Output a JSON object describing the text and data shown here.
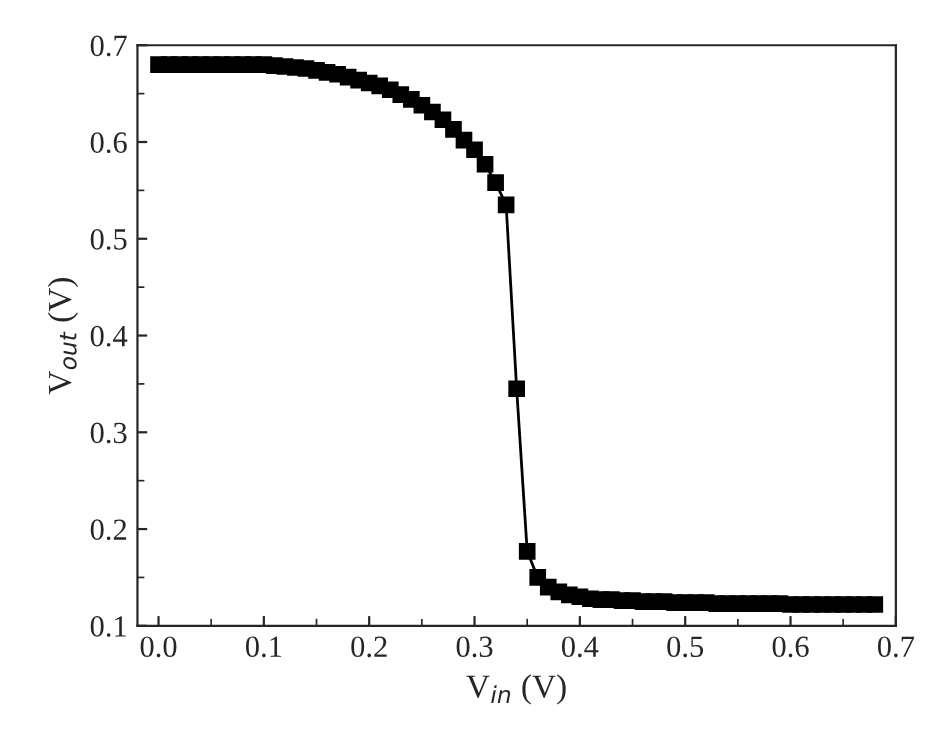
{
  "chart_data": {
    "type": "line",
    "xlabel": "V$_{in}$ (V)",
    "ylabel": "V$_{out}$ (V)",
    "x": [
      0,
      0.01,
      0.02,
      0.03,
      0.04,
      0.05,
      0.06,
      0.07,
      0.08,
      0.09,
      0.1,
      0.11,
      0.12,
      0.13,
      0.14,
      0.15,
      0.16,
      0.17,
      0.18,
      0.19,
      0.2,
      0.21,
      0.22,
      0.23,
      0.24,
      0.25,
      0.26,
      0.27,
      0.28,
      0.29,
      0.3,
      0.31,
      0.32,
      0.33,
      0.34,
      0.35,
      0.36,
      0.37,
      0.38,
      0.39,
      0.4,
      0.41,
      0.42,
      0.43,
      0.44,
      0.45,
      0.46,
      0.47,
      0.48,
      0.49,
      0.5,
      0.51,
      0.52,
      0.53,
      0.54,
      0.55,
      0.56,
      0.57,
      0.58,
      0.59,
      0.6,
      0.61,
      0.62,
      0.63,
      0.64,
      0.65,
      0.66,
      0.67,
      0.68
    ],
    "series": [
      {
        "color": "#000000",
        "values": [
          0.68,
          0.68,
          0.68,
          0.68,
          0.68,
          0.68,
          0.68,
          0.68,
          0.68,
          0.68,
          0.68,
          0.679,
          0.678,
          0.677,
          0.676,
          0.674,
          0.672,
          0.67,
          0.667,
          0.664,
          0.661,
          0.658,
          0.654,
          0.649,
          0.644,
          0.638,
          0.631,
          0.623,
          0.613,
          0.602,
          0.592,
          0.577,
          0.558,
          0.535,
          0.345,
          0.177,
          0.15,
          0.14,
          0.135,
          0.132,
          0.13,
          0.128,
          0.127,
          0.127,
          0.126,
          0.126,
          0.125,
          0.125,
          0.125,
          0.124,
          0.124,
          0.124,
          0.124,
          0.123,
          0.123,
          0.123,
          0.123,
          0.123,
          0.123,
          0.123,
          0.122,
          0.122,
          0.122,
          0.122,
          0.122,
          0.122,
          0.122,
          0.122,
          0.122
        ]
      }
    ],
    "xlim": [
      -0.02,
      0.7
    ],
    "ylim": [
      0.1,
      0.7
    ],
    "xticks": [
      {
        "value": 0,
        "label": "0.0"
      },
      0.1,
      0.2,
      0.3,
      0.4,
      0.5,
      0.6,
      0.7
    ],
    "yticks": [
      0.1,
      0.2,
      0.3,
      0.4,
      0.5,
      0.6,
      0.7
    ],
    "marker": "square",
    "line_style": "solid",
    "grid": false,
    "legend": false
  }
}
